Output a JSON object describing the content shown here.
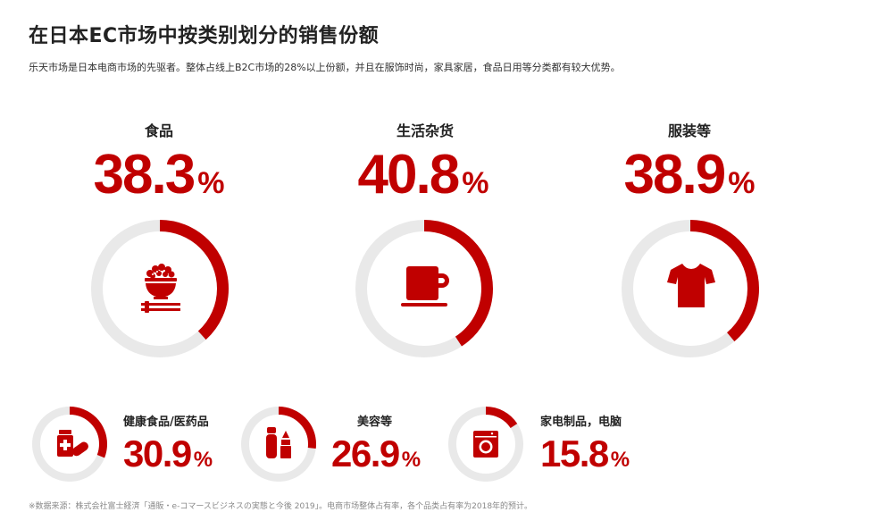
{
  "title": "在日本EC市场中按类别划分的销售份额",
  "subtitle": "乐天市场是日本电商市场的先驱者。整体占线上B2C市场的28%以上份额，并且在服饰时尚，家具家居，食品日用等分类都有较大优势。",
  "footnote": "※数据来源：株式会社富士経済「通販・e-コマースビジネスの実態と今後 2019」。电商市场整体占有率，各个品类占有率为2018年的预计。",
  "colors": {
    "accent": "#c00000",
    "track": "#e9e9e9"
  },
  "percent_sign": "%",
  "chart_data": {
    "type": "donut",
    "categories": [
      "食品",
      "生活杂货",
      "服装等",
      "健康食品/医药品",
      "美容等",
      "家电制品，电脑"
    ],
    "values": [
      38.3,
      40.8,
      38.9,
      30.9,
      26.9,
      15.8
    ],
    "value_labels": [
      "38.3",
      "40.8",
      "38.9",
      "30.9",
      "26.9",
      "15.8"
    ],
    "unit": "%",
    "ylim": [
      0,
      100
    ]
  },
  "icons": [
    "rice-bowl-icon",
    "coffee-cup-icon",
    "tshirt-icon",
    "medicine-icon",
    "cosmetics-icon",
    "washing-machine-icon"
  ]
}
